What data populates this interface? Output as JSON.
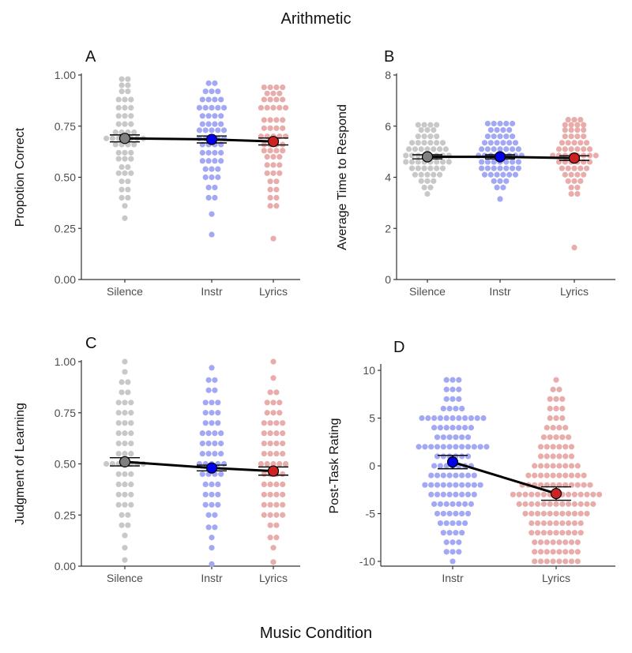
{
  "figure": {
    "title": "Arithmetic",
    "xlabel": "Music Condition"
  },
  "colors": {
    "Silence": "#c8c8c8",
    "Instr": "#a3a8f5",
    "Lyrics": "#e8adab",
    "mean_Silence": "#808080",
    "mean_Instr": "#0000ee",
    "mean_Lyrics": "#cc2222",
    "line": "#000000"
  },
  "chart_data": [
    {
      "panel": "A",
      "type": "dotplot",
      "ylabel": "Propotion Correct",
      "ylim": [
        0,
        1
      ],
      "yticks": [
        "0.00",
        "0.25",
        "0.50",
        "0.75",
        "1.00"
      ],
      "categories": [
        "Silence",
        "Instr",
        "Lyrics"
      ],
      "means": [
        0.69,
        0.685,
        0.675
      ],
      "error": [
        0.017,
        0.017,
        0.017
      ],
      "points": [
        [
          0.3,
          0.36,
          0.4,
          0.44,
          0.48,
          0.52,
          0.55,
          0.59,
          0.62,
          0.66,
          0.69,
          0.72,
          0.76,
          0.8,
          0.84,
          0.88,
          0.92,
          0.95,
          0.98
        ],
        [
          0.22,
          0.32,
          0.4,
          0.45,
          0.5,
          0.54,
          0.58,
          0.62,
          0.66,
          0.69,
          0.73,
          0.76,
          0.8,
          0.84,
          0.88,
          0.92,
          0.96
        ],
        [
          0.2,
          0.36,
          0.4,
          0.44,
          0.48,
          0.52,
          0.56,
          0.6,
          0.63,
          0.66,
          0.7,
          0.74,
          0.78,
          0.84,
          0.88,
          0.91,
          0.94
        ]
      ],
      "counts": [
        [
          1,
          1,
          2,
          2,
          2,
          3,
          2,
          3,
          3,
          4,
          7,
          4,
          3,
          3,
          3,
          3,
          2,
          2,
          2
        ],
        [
          1,
          1,
          2,
          2,
          3,
          3,
          4,
          4,
          4,
          5,
          5,
          4,
          4,
          5,
          4,
          3,
          2
        ],
        [
          1,
          2,
          2,
          2,
          2,
          3,
          3,
          3,
          4,
          4,
          5,
          4,
          4,
          5,
          4,
          3,
          4
        ]
      ]
    },
    {
      "panel": "B",
      "type": "dotplot",
      "ylabel": "Average Time to Respond",
      "ylim": [
        0,
        8
      ],
      "yticks": [
        "0",
        "2",
        "4",
        "6",
        "8"
      ],
      "categories": [
        "Silence",
        "Instr",
        "Lyrics"
      ],
      "means": [
        4.8,
        4.8,
        4.75
      ],
      "error": [
        0.08,
        0.08,
        0.09
      ],
      "points": [
        [
          3.35,
          3.6,
          3.85,
          4.1,
          4.35,
          4.6,
          4.85,
          5.1,
          5.35,
          5.6,
          5.85,
          6.05
        ],
        [
          3.15,
          3.6,
          3.85,
          4.1,
          4.35,
          4.6,
          4.85,
          5.1,
          5.35,
          5.6,
          5.85,
          6.1
        ],
        [
          1.25,
          3.35,
          3.6,
          3.85,
          4.1,
          4.35,
          4.6,
          4.85,
          5.1,
          5.35,
          5.6,
          5.85,
          6.05,
          6.25
        ]
      ],
      "counts": [
        [
          1,
          2,
          3,
          5,
          6,
          8,
          8,
          7,
          6,
          4,
          3,
          4
        ],
        [
          1,
          2,
          3,
          6,
          7,
          7,
          8,
          7,
          6,
          5,
          4,
          5
        ],
        [
          1,
          2,
          2,
          3,
          4,
          5,
          6,
          8,
          6,
          5,
          4,
          4,
          4,
          3
        ]
      ]
    },
    {
      "panel": "C",
      "type": "dotplot",
      "ylabel": "Judgment of Learning",
      "ylim": [
        0,
        1
      ],
      "yticks": [
        "0.00",
        "0.25",
        "0.50",
        "0.75",
        "1.00"
      ],
      "categories": [
        "Silence",
        "Instr",
        "Lyrics"
      ],
      "means": [
        0.51,
        0.48,
        0.465
      ],
      "error": [
        0.02,
        0.014,
        0.02
      ],
      "points": [
        [
          0.03,
          0.09,
          0.15,
          0.2,
          0.25,
          0.3,
          0.35,
          0.4,
          0.45,
          0.5,
          0.55,
          0.6,
          0.65,
          0.7,
          0.75,
          0.8,
          0.85,
          0.9,
          0.95,
          1.0
        ],
        [
          0.01,
          0.09,
          0.14,
          0.19,
          0.25,
          0.3,
          0.35,
          0.4,
          0.45,
          0.5,
          0.55,
          0.6,
          0.65,
          0.7,
          0.75,
          0.8,
          0.86,
          0.91,
          0.97
        ],
        [
          0.02,
          0.09,
          0.14,
          0.2,
          0.25,
          0.3,
          0.35,
          0.4,
          0.45,
          0.5,
          0.55,
          0.6,
          0.65,
          0.7,
          0.75,
          0.8,
          0.85,
          0.92,
          1.0
        ]
      ],
      "counts": [
        [
          1,
          1,
          1,
          2,
          2,
          3,
          3,
          3,
          3,
          7,
          3,
          3,
          3,
          3,
          3,
          3,
          2,
          2,
          1,
          1
        ],
        [
          1,
          1,
          1,
          2,
          2,
          3,
          3,
          3,
          4,
          5,
          4,
          4,
          4,
          3,
          3,
          3,
          2,
          2,
          1
        ],
        [
          1,
          1,
          2,
          2,
          4,
          4,
          4,
          4,
          4,
          5,
          4,
          4,
          4,
          4,
          3,
          3,
          2,
          1,
          1
        ]
      ]
    },
    {
      "panel": "D",
      "type": "dotplot",
      "ylabel": "Post-Task Rating",
      "ylim": [
        -10.5,
        10.5
      ],
      "yticks": [
        "-10",
        "-5",
        "0",
        "5",
        "10"
      ],
      "tick_values": [
        -10,
        -5,
        0,
        5,
        10
      ],
      "categories": [
        "Instr",
        "Lyrics"
      ],
      "means": [
        0.4,
        -2.9
      ],
      "error": [
        0.7,
        0.7
      ],
      "points": [
        [
          -10,
          -9,
          -8,
          -7,
          -6,
          -5,
          -4,
          -3,
          -2,
          -1,
          0,
          1,
          2,
          3,
          4,
          5,
          6,
          7,
          8,
          9
        ],
        [
          -10,
          -9,
          -8,
          -7,
          -6,
          -5,
          -4,
          -3,
          -2,
          -1,
          0,
          1,
          2,
          3,
          4,
          5,
          6,
          7,
          8,
          9
        ]
      ],
      "counts": [
        [
          1,
          3,
          3,
          4,
          5,
          6,
          7,
          8,
          10,
          8,
          7,
          6,
          12,
          6,
          7,
          11,
          4,
          3,
          3,
          3
        ],
        [
          8,
          8,
          8,
          9,
          9,
          11,
          13,
          15,
          12,
          10,
          8,
          6,
          6,
          5,
          4,
          3,
          3,
          3,
          2,
          1
        ]
      ]
    }
  ]
}
